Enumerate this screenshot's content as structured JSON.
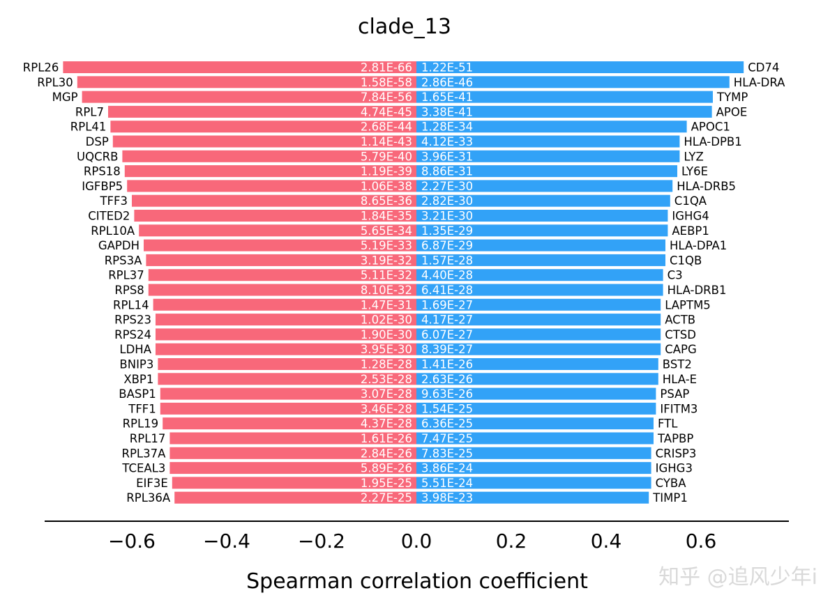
{
  "chart_data": {
    "type": "bar",
    "orientation": "horizontal-diverging",
    "title": "clade_13",
    "xlabel": "Spearman correlation coefficient",
    "ylabel": "",
    "xlim": [
      -0.78,
      0.78
    ],
    "xticks": [
      -0.6,
      -0.4,
      -0.2,
      0.0,
      0.2,
      0.4,
      0.6
    ],
    "xtick_labels": [
      "−0.6",
      "−0.4",
      "−0.2",
      "0.0",
      "0.2",
      "0.4",
      "0.6"
    ],
    "grid": false,
    "series": [
      {
        "name": "negative",
        "color": "#f8687a",
        "genes": [
          "RPL26",
          "RPL30",
          "MGP",
          "RPL7",
          "RPL41",
          "DSP",
          "UQCRB",
          "RPS18",
          "IGFBP5",
          "TFF3",
          "CITED2",
          "RPL10A",
          "GAPDH",
          "RPS3A",
          "RPL37",
          "RPS8",
          "RPL14",
          "RPS23",
          "RPS24",
          "LDHA",
          "BNIP3",
          "XBP1",
          "BASP1",
          "TFF1",
          "RPL19",
          "RPL17",
          "RPL37A",
          "TCEAL3",
          "EIF3E",
          "RPL36A"
        ],
        "values": [
          -0.745,
          -0.715,
          -0.705,
          -0.65,
          -0.645,
          -0.64,
          -0.62,
          -0.615,
          -0.61,
          -0.6,
          -0.595,
          -0.585,
          -0.575,
          -0.57,
          -0.565,
          -0.565,
          -0.555,
          -0.55,
          -0.55,
          -0.55,
          -0.545,
          -0.545,
          -0.54,
          -0.54,
          -0.535,
          -0.52,
          -0.52,
          -0.52,
          -0.515,
          -0.51
        ],
        "pvalues": [
          "2.81E-66",
          "1.58E-58",
          "7.84E-56",
          "4.74E-45",
          "2.68E-44",
          "1.14E-43",
          "5.79E-40",
          "1.19E-39",
          "1.06E-38",
          "8.65E-36",
          "1.84E-35",
          "5.65E-34",
          "5.19E-33",
          "3.19E-32",
          "5.11E-32",
          "8.10E-32",
          "1.47E-31",
          "1.02E-30",
          "1.90E-30",
          "3.95E-30",
          "1.28E-28",
          "2.53E-28",
          "3.07E-28",
          "3.46E-28",
          "4.37E-28",
          "1.61E-26",
          "2.84E-26",
          "5.89E-26",
          "1.95E-25",
          "2.27E-25"
        ]
      },
      {
        "name": "positive",
        "color": "#32a2f7",
        "genes": [
          "CD74",
          "HLA-DRA",
          "TYMP",
          "APOE",
          "APOC1",
          "HLA-DPB1",
          "LYZ",
          "LY6E",
          "HLA-DRB5",
          "C1QA",
          "IGHG4",
          "AEBP1",
          "HLA-DPA1",
          "C1QB",
          "C3",
          "HLA-DRB1",
          "LAPTM5",
          "ACTB",
          "CTSD",
          "CAPG",
          "BST2",
          "HLA-E",
          "PSAP",
          "IFITM3",
          "FTL",
          "TAPBP",
          "CRISP3",
          "IGHG3",
          "CYBA",
          "TIMP1"
        ],
        "values": [
          0.69,
          0.66,
          0.625,
          0.623,
          0.57,
          0.555,
          0.555,
          0.55,
          0.54,
          0.535,
          0.53,
          0.53,
          0.525,
          0.525,
          0.52,
          0.52,
          0.515,
          0.515,
          0.515,
          0.515,
          0.51,
          0.51,
          0.505,
          0.505,
          0.5,
          0.5,
          0.495,
          0.495,
          0.495,
          0.49
        ],
        "pvalues": [
          "1.22E-51",
          "2.86E-46",
          "1.65E-41",
          "3.38E-41",
          "1.28E-34",
          "4.12E-33",
          "3.96E-31",
          "8.86E-31",
          "2.27E-30",
          "2.82E-30",
          "3.21E-30",
          "1.35E-29",
          "6.87E-29",
          "1.57E-28",
          "4.40E-28",
          "6.41E-28",
          "1.69E-27",
          "4.17E-27",
          "6.07E-27",
          "8.39E-27",
          "1.41E-26",
          "2.63E-26",
          "9.63E-26",
          "1.54E-25",
          "6.36E-25",
          "7.47E-25",
          "7.83E-25",
          "3.86E-24",
          "5.51E-24",
          "3.98E-23"
        ]
      }
    ]
  },
  "watermark": "知乎 @追风少年i"
}
